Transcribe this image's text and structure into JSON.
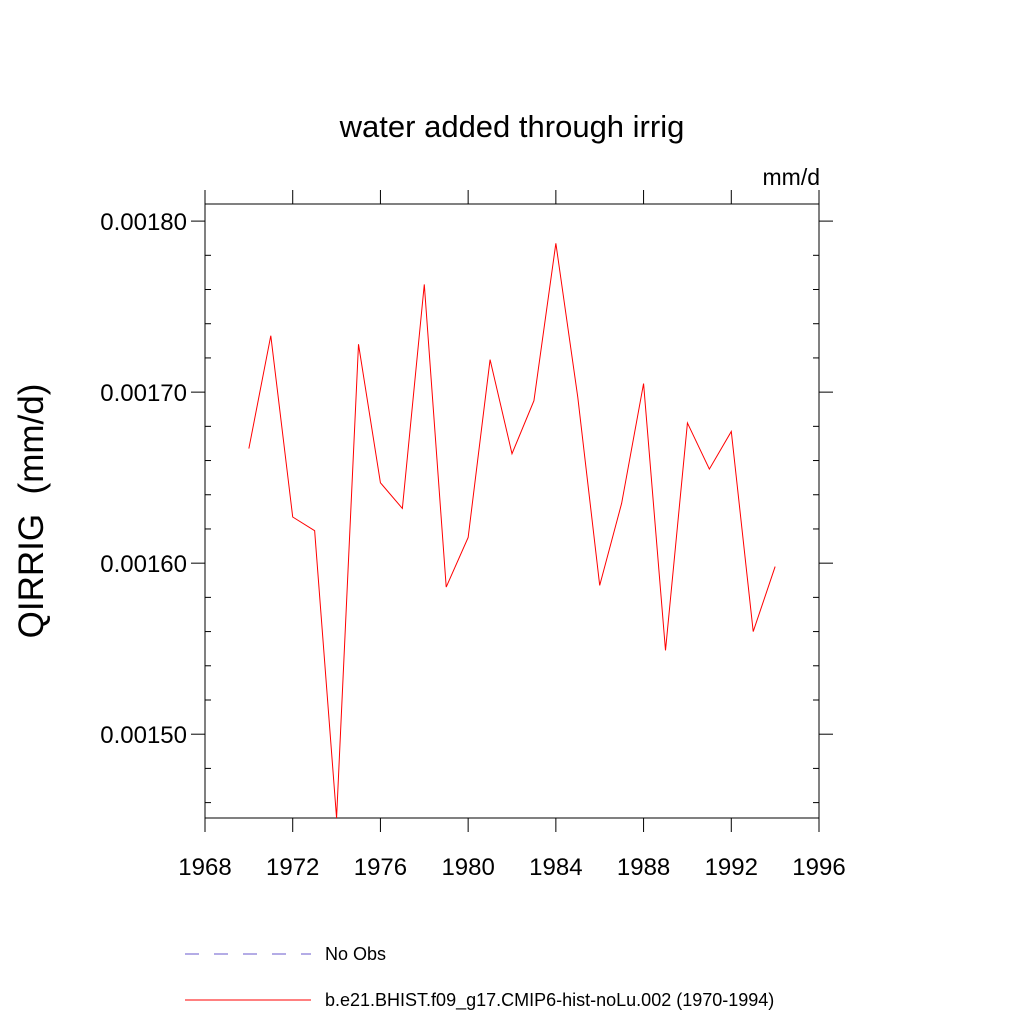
{
  "chart_data": {
    "type": "line",
    "title": "water added through irrig",
    "units": "mm/d",
    "ylabel": "QIRRIG  (mm/d)",
    "xlabel": "",
    "xlim": [
      1968,
      1996
    ],
    "ylim": [
      0.001451,
      0.00181
    ],
    "xticks": [
      "1968",
      "1972",
      "1976",
      "1980",
      "1984",
      "1988",
      "1992",
      "1996"
    ],
    "xtick_values": [
      1968,
      1972,
      1976,
      1980,
      1984,
      1988,
      1992,
      1996
    ],
    "yticks": [
      "0.00150",
      "0.00160",
      "0.00170",
      "0.00180"
    ],
    "ytick_values": [
      0.0015,
      0.0016,
      0.0017,
      0.0018
    ],
    "grid": false,
    "legend_position": "bottom",
    "series": [
      {
        "name": "b.e21.BHIST.f09_g17.CMIP6-hist-noLu.002 (1970-1994)",
        "color": "#ff0000",
        "style": "solid",
        "x": [
          1970,
          1971,
          1972,
          1973,
          1974,
          1975,
          1976,
          1977,
          1978,
          1979,
          1980,
          1981,
          1982,
          1983,
          1984,
          1985,
          1986,
          1987,
          1988,
          1989,
          1990,
          1991,
          1992,
          1993,
          1994
        ],
        "y": [
          0.001667,
          0.001733,
          0.001627,
          0.001619,
          0.001451,
          0.001728,
          0.001647,
          0.001632,
          0.001763,
          0.001586,
          0.001615,
          0.001719,
          0.001664,
          0.001695,
          0.001787,
          0.001697,
          0.001587,
          0.001635,
          0.001705,
          0.001549,
          0.001682,
          0.001655,
          0.001677,
          0.00156,
          0.001598
        ]
      }
    ],
    "legend": [
      {
        "label": "No Obs",
        "color": "#6a5acd",
        "style": "dashed"
      },
      {
        "label": "b.e21.BHIST.f09_g17.CMIP6-hist-noLu.002 (1970-1994)",
        "color": "#ff0000",
        "style": "solid"
      }
    ]
  }
}
